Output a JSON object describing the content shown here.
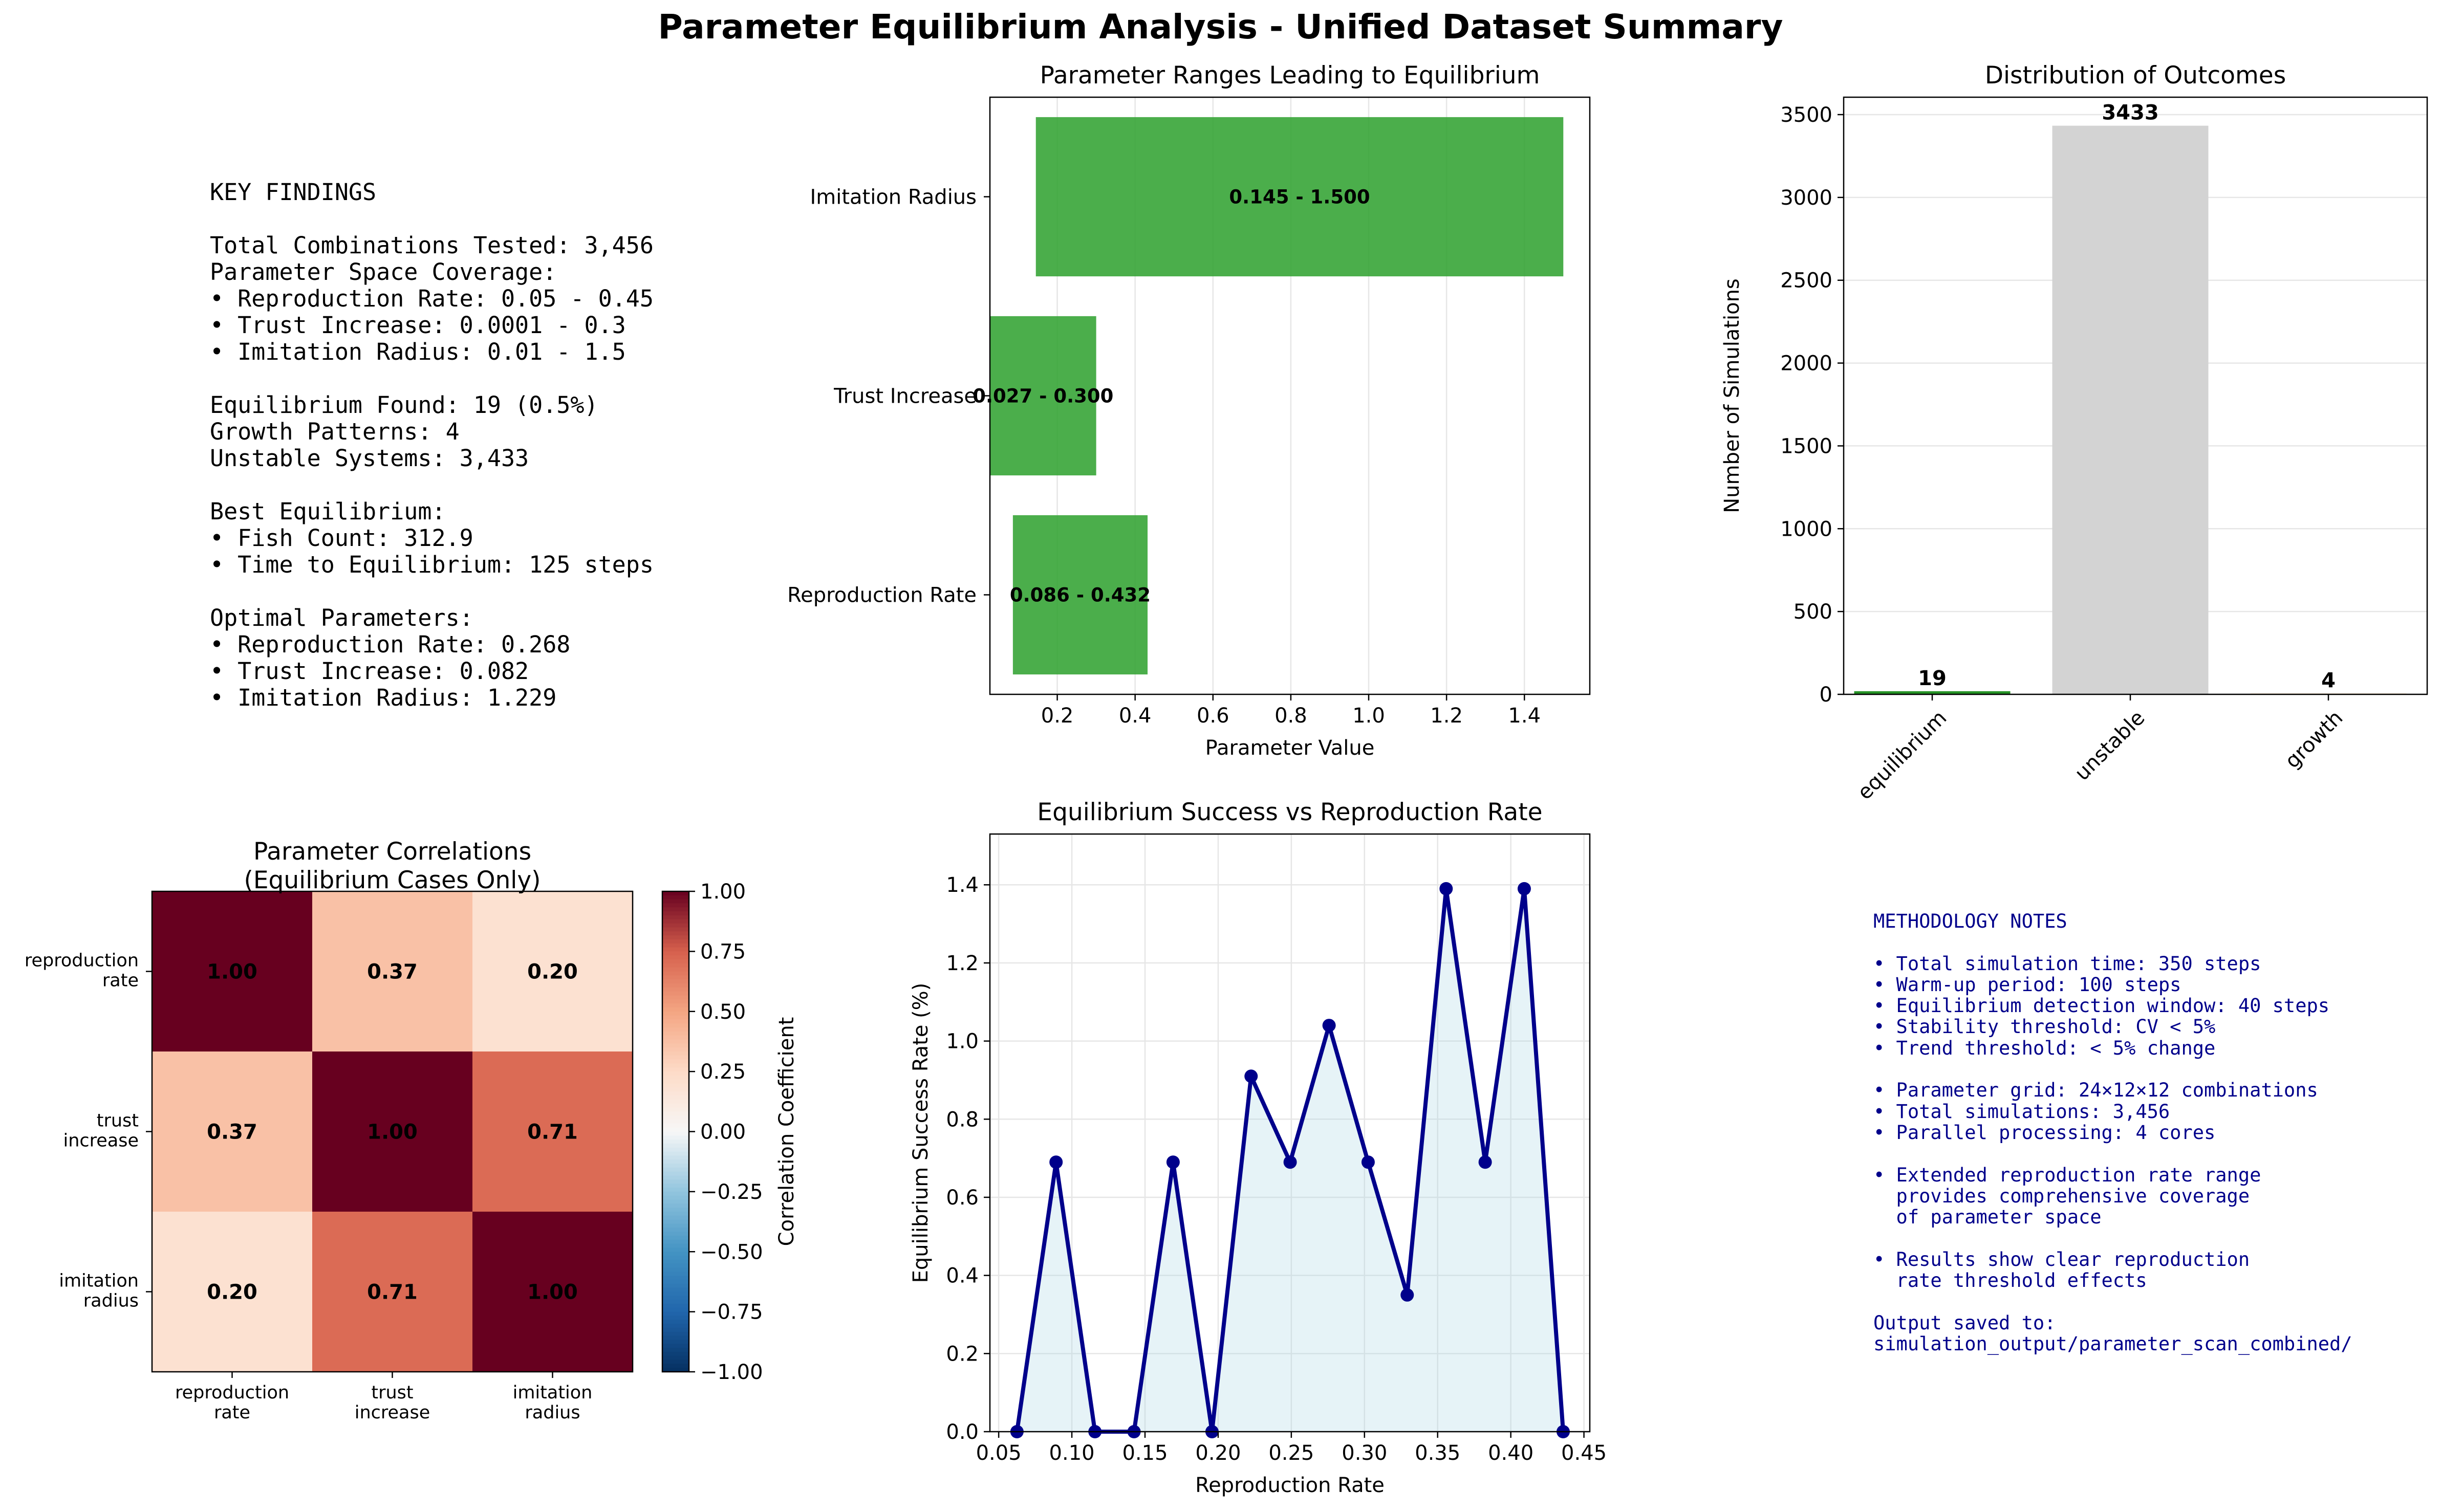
{
  "suptitle": "Parameter Equilibrium Analysis - Unified Dataset Summary",
  "key_findings": {
    "lines": [
      "KEY FINDINGS",
      "",
      "Total Combinations Tested: 3,456",
      "Parameter Space Coverage:",
      "• Reproduction Rate: 0.05 - 0.45",
      "• Trust Increase: 0.0001 - 0.3",
      "• Imitation Radius: 0.01 - 1.5",
      "",
      "Equilibrium Found: 19 (0.5%)",
      "Growth Patterns: 4",
      "Unstable Systems: 3,433",
      "",
      "Best Equilibrium:",
      "• Fish Count: 312.9",
      "• Time to Equilibrium: 125 steps",
      "",
      "Optimal Parameters:",
      "• Reproduction Rate: 0.268",
      "• Trust Increase: 0.082",
      "• Imitation Radius: 1.229"
    ]
  },
  "methodology": {
    "color": "#00008b",
    "lines": [
      "METHODOLOGY NOTES",
      "",
      "• Total simulation time: 350 steps",
      "• Warm-up period: 100 steps",
      "• Equilibrium detection window: 40 steps",
      "• Stability threshold: CV < 5%",
      "• Trend threshold: < 5% change",
      "",
      "• Parameter grid: 24×12×12 combinations",
      "• Total simulations: 3,456",
      "• Parallel processing: 4 cores",
      "",
      "• Extended reproduction rate range",
      "  provides comprehensive coverage",
      "  of parameter space",
      "",
      "• Results show clear reproduction",
      "  rate threshold effects",
      "",
      "Output saved to:",
      "simulation_output/parameter_scan_combined/"
    ]
  },
  "chart_data": [
    {
      "type": "bar",
      "orientation": "horizontal",
      "title": "Parameter Ranges Leading to Equilibrium",
      "xlabel": "Parameter Value",
      "ylabel": "",
      "categories": [
        "Reproduction Rate",
        "Trust Increase",
        "Imitation Radius"
      ],
      "ranges": [
        [
          0.086,
          0.432
        ],
        [
          0.027,
          0.3
        ],
        [
          0.145,
          1.5
        ]
      ],
      "labels": [
        "0.086 - 0.432",
        "0.027 - 0.300",
        "0.145 - 1.500"
      ],
      "xlim": [
        0.027,
        1.568
      ],
      "xticks": [
        0.2,
        0.4,
        0.6,
        0.8,
        1.0,
        1.2,
        1.4
      ],
      "xtick_labels": [
        "0.2",
        "0.4",
        "0.6",
        "0.8",
        "1.0",
        "1.2",
        "1.4"
      ],
      "grid": true,
      "color": "#2ca02c"
    },
    {
      "type": "bar",
      "title": "Distribution of Outcomes",
      "xlabel": "",
      "ylabel": "Number of Simulations",
      "categories": [
        "equilibrium",
        "unstable",
        "growth"
      ],
      "values": [
        19,
        3433,
        4
      ],
      "labels": [
        "19",
        "3433",
        "4"
      ],
      "ylim": [
        0,
        3605
      ],
      "yticks": [
        0,
        500,
        1000,
        1500,
        2000,
        2500,
        3000,
        3500
      ],
      "ytick_labels": [
        "0",
        "500",
        "1000",
        "1500",
        "2000",
        "2500",
        "3000",
        "3500"
      ],
      "colors": [
        "#008000",
        "#d3d3d3",
        "#ff8c00"
      ],
      "grid": true
    },
    {
      "type": "heatmap",
      "title": "Parameter Correlations\n(Equilibrium Cases Only)",
      "row_labels": [
        "reproduction\nrate",
        "trust\nincrease",
        "imitation\nradius"
      ],
      "col_labels": [
        "reproduction\nrate",
        "trust\nincrease",
        "imitation\nradius"
      ],
      "values": [
        [
          1.0,
          0.37,
          0.2
        ],
        [
          0.37,
          1.0,
          0.71
        ],
        [
          0.2,
          0.71,
          1.0
        ]
      ],
      "cell_labels": [
        [
          "1.00",
          "0.37",
          "0.20"
        ],
        [
          "0.37",
          "1.00",
          "0.71"
        ],
        [
          "0.20",
          "0.71",
          "1.00"
        ]
      ],
      "colormap": "RdBu_r",
      "vmin": -1,
      "vmax": 1,
      "colorbar_label": "Correlation Coefficient",
      "colorbar_ticks": [
        1.0,
        0.75,
        0.5,
        0.25,
        0.0,
        -0.25,
        -0.5,
        -0.75,
        -1.0
      ],
      "colorbar_tick_labels": [
        "1.00",
        "0.75",
        "0.50",
        "0.25",
        "0.00",
        "−0.25",
        "−0.50",
        "−0.75",
        "−1.00"
      ]
    },
    {
      "type": "line",
      "title": "Equilibrium Success vs Reproduction Rate",
      "xlabel": "Reproduction Rate",
      "ylabel": "Equilibrium Success Rate (%)",
      "x": [
        0.0625,
        0.0892,
        0.1158,
        0.1425,
        0.1692,
        0.1958,
        0.2225,
        0.2492,
        0.2758,
        0.3025,
        0.3292,
        0.3558,
        0.3825,
        0.4092,
        0.4358
      ],
      "y": [
        0.0,
        0.69,
        0.0,
        0.0,
        0.69,
        0.0,
        0.91,
        0.69,
        1.04,
        0.69,
        0.35,
        1.39,
        0.69,
        1.39,
        0.0
      ],
      "xlim": [
        0.044,
        0.454
      ],
      "ylim": [
        0,
        1.53
      ],
      "xticks": [
        0.05,
        0.1,
        0.15,
        0.2,
        0.25,
        0.3,
        0.35,
        0.4,
        0.45
      ],
      "xtick_labels": [
        "0.05",
        "0.10",
        "0.15",
        "0.20",
        "0.25",
        "0.30",
        "0.35",
        "0.40",
        "0.45"
      ],
      "yticks": [
        0,
        0.2,
        0.4,
        0.6,
        0.8,
        1.0,
        1.2,
        1.4
      ],
      "ytick_labels": [
        "0.0",
        "0.2",
        "0.4",
        "0.6",
        "0.8",
        "1.0",
        "1.2",
        "1.4"
      ],
      "line_color": "#00008b",
      "fill_color": "#add8e6",
      "grid": true
    }
  ]
}
